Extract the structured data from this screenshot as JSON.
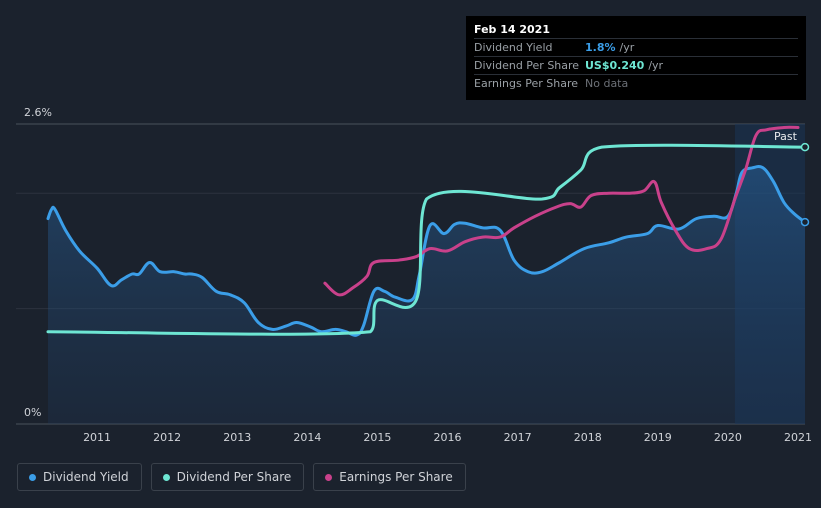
{
  "tooltip": {
    "date": "Feb 14 2021",
    "rows": [
      {
        "label": "Dividend Yield",
        "value": "1.8%",
        "unit": "/yr"
      },
      {
        "label": "Dividend Per Share",
        "value": "US$0.240",
        "unit": "/yr"
      },
      {
        "label": "Earnings Per Share",
        "value": "No data",
        "unit": ""
      }
    ]
  },
  "legend": [
    {
      "label": "Dividend Yield",
      "color": "#3b9ee8"
    },
    {
      "label": "Dividend Per Share",
      "color": "#6ee6d3"
    },
    {
      "label": "Earnings Per Share",
      "color": "#c9418b"
    }
  ],
  "chart_data": {
    "type": "line",
    "ylim": [
      0,
      2.6
    ],
    "xlim": [
      2010.3,
      2021.1
    ],
    "y_tick_labels": [
      {
        "value": 2.6,
        "label": "2.6%"
      },
      {
        "value": 0,
        "label": "0%"
      }
    ],
    "x_tick_labels": [
      "2011",
      "2012",
      "2013",
      "2014",
      "2015",
      "2016",
      "2017",
      "2018",
      "2019",
      "2020",
      "2021"
    ],
    "past_label": "Past",
    "past_start": 2020.1,
    "series": [
      {
        "name": "Dividend Yield",
        "color": "#3b9ee8",
        "x": [
          2010.3,
          2010.35,
          2010.4,
          2010.55,
          2010.75,
          2011.0,
          2011.2,
          2011.35,
          2011.5,
          2011.6,
          2011.75,
          2011.9,
          2012.1,
          2012.25,
          2012.35,
          2012.5,
          2012.7,
          2012.9,
          2013.1,
          2013.3,
          2013.5,
          2013.7,
          2013.85,
          2014.05,
          2014.2,
          2014.4,
          2014.55,
          2014.7,
          2014.8,
          2014.95,
          2015.1,
          2015.25,
          2015.5,
          2015.6,
          2015.75,
          2015.95,
          2016.1,
          2016.25,
          2016.5,
          2016.75,
          2016.95,
          2017.15,
          2017.35,
          2017.6,
          2017.95,
          2018.3,
          2018.55,
          2018.85,
          2019.0,
          2019.3,
          2019.55,
          2019.8,
          2020.0,
          2020.12,
          2020.2,
          2020.35,
          2020.5,
          2020.65,
          2020.8,
          2020.95,
          2021.1
        ],
        "y": [
          1.78,
          1.86,
          1.86,
          1.68,
          1.5,
          1.35,
          1.2,
          1.25,
          1.3,
          1.3,
          1.4,
          1.32,
          1.32,
          1.3,
          1.3,
          1.27,
          1.15,
          1.12,
          1.05,
          0.88,
          0.82,
          0.85,
          0.88,
          0.84,
          0.8,
          0.82,
          0.8,
          0.77,
          0.85,
          1.15,
          1.15,
          1.1,
          1.08,
          1.3,
          1.72,
          1.65,
          1.73,
          1.74,
          1.7,
          1.68,
          1.42,
          1.32,
          1.32,
          1.4,
          1.52,
          1.57,
          1.62,
          1.65,
          1.72,
          1.69,
          1.78,
          1.8,
          1.8,
          2.0,
          2.18,
          2.22,
          2.22,
          2.1,
          1.92,
          1.82,
          1.75
        ]
      },
      {
        "name": "Dividend Per Share",
        "color": "#6ee6d3",
        "x": [
          2010.3,
          2014.9,
          2015.0,
          2015.55,
          2015.7,
          2017.35,
          2017.6,
          2017.9,
          2018.2,
          2021.1
        ],
        "y": [
          0.8,
          0.8,
          1.07,
          1.07,
          1.95,
          1.95,
          2.05,
          2.2,
          2.4,
          2.4
        ]
      },
      {
        "name": "Earnings Per Share",
        "color": "#c9418b",
        "x": [
          2014.25,
          2014.45,
          2014.65,
          2014.85,
          2014.95,
          2015.3,
          2015.55,
          2015.75,
          2016.0,
          2016.25,
          2016.5,
          2016.75,
          2016.95,
          2017.25,
          2017.55,
          2017.75,
          2017.9,
          2018.05,
          2018.3,
          2018.6,
          2018.8,
          2018.95,
          2019.05,
          2019.25,
          2019.45,
          2019.7,
          2019.9,
          2020.1,
          2020.25,
          2020.4,
          2020.55,
          2020.8,
          2021.0
        ],
        "y": [
          1.22,
          1.12,
          1.18,
          1.28,
          1.4,
          1.42,
          1.45,
          1.52,
          1.5,
          1.58,
          1.62,
          1.62,
          1.7,
          1.8,
          1.88,
          1.91,
          1.88,
          1.98,
          2.0,
          2.0,
          2.02,
          2.1,
          1.92,
          1.68,
          1.52,
          1.52,
          1.6,
          1.95,
          2.2,
          2.5,
          2.55,
          2.57,
          2.57
        ]
      }
    ]
  }
}
